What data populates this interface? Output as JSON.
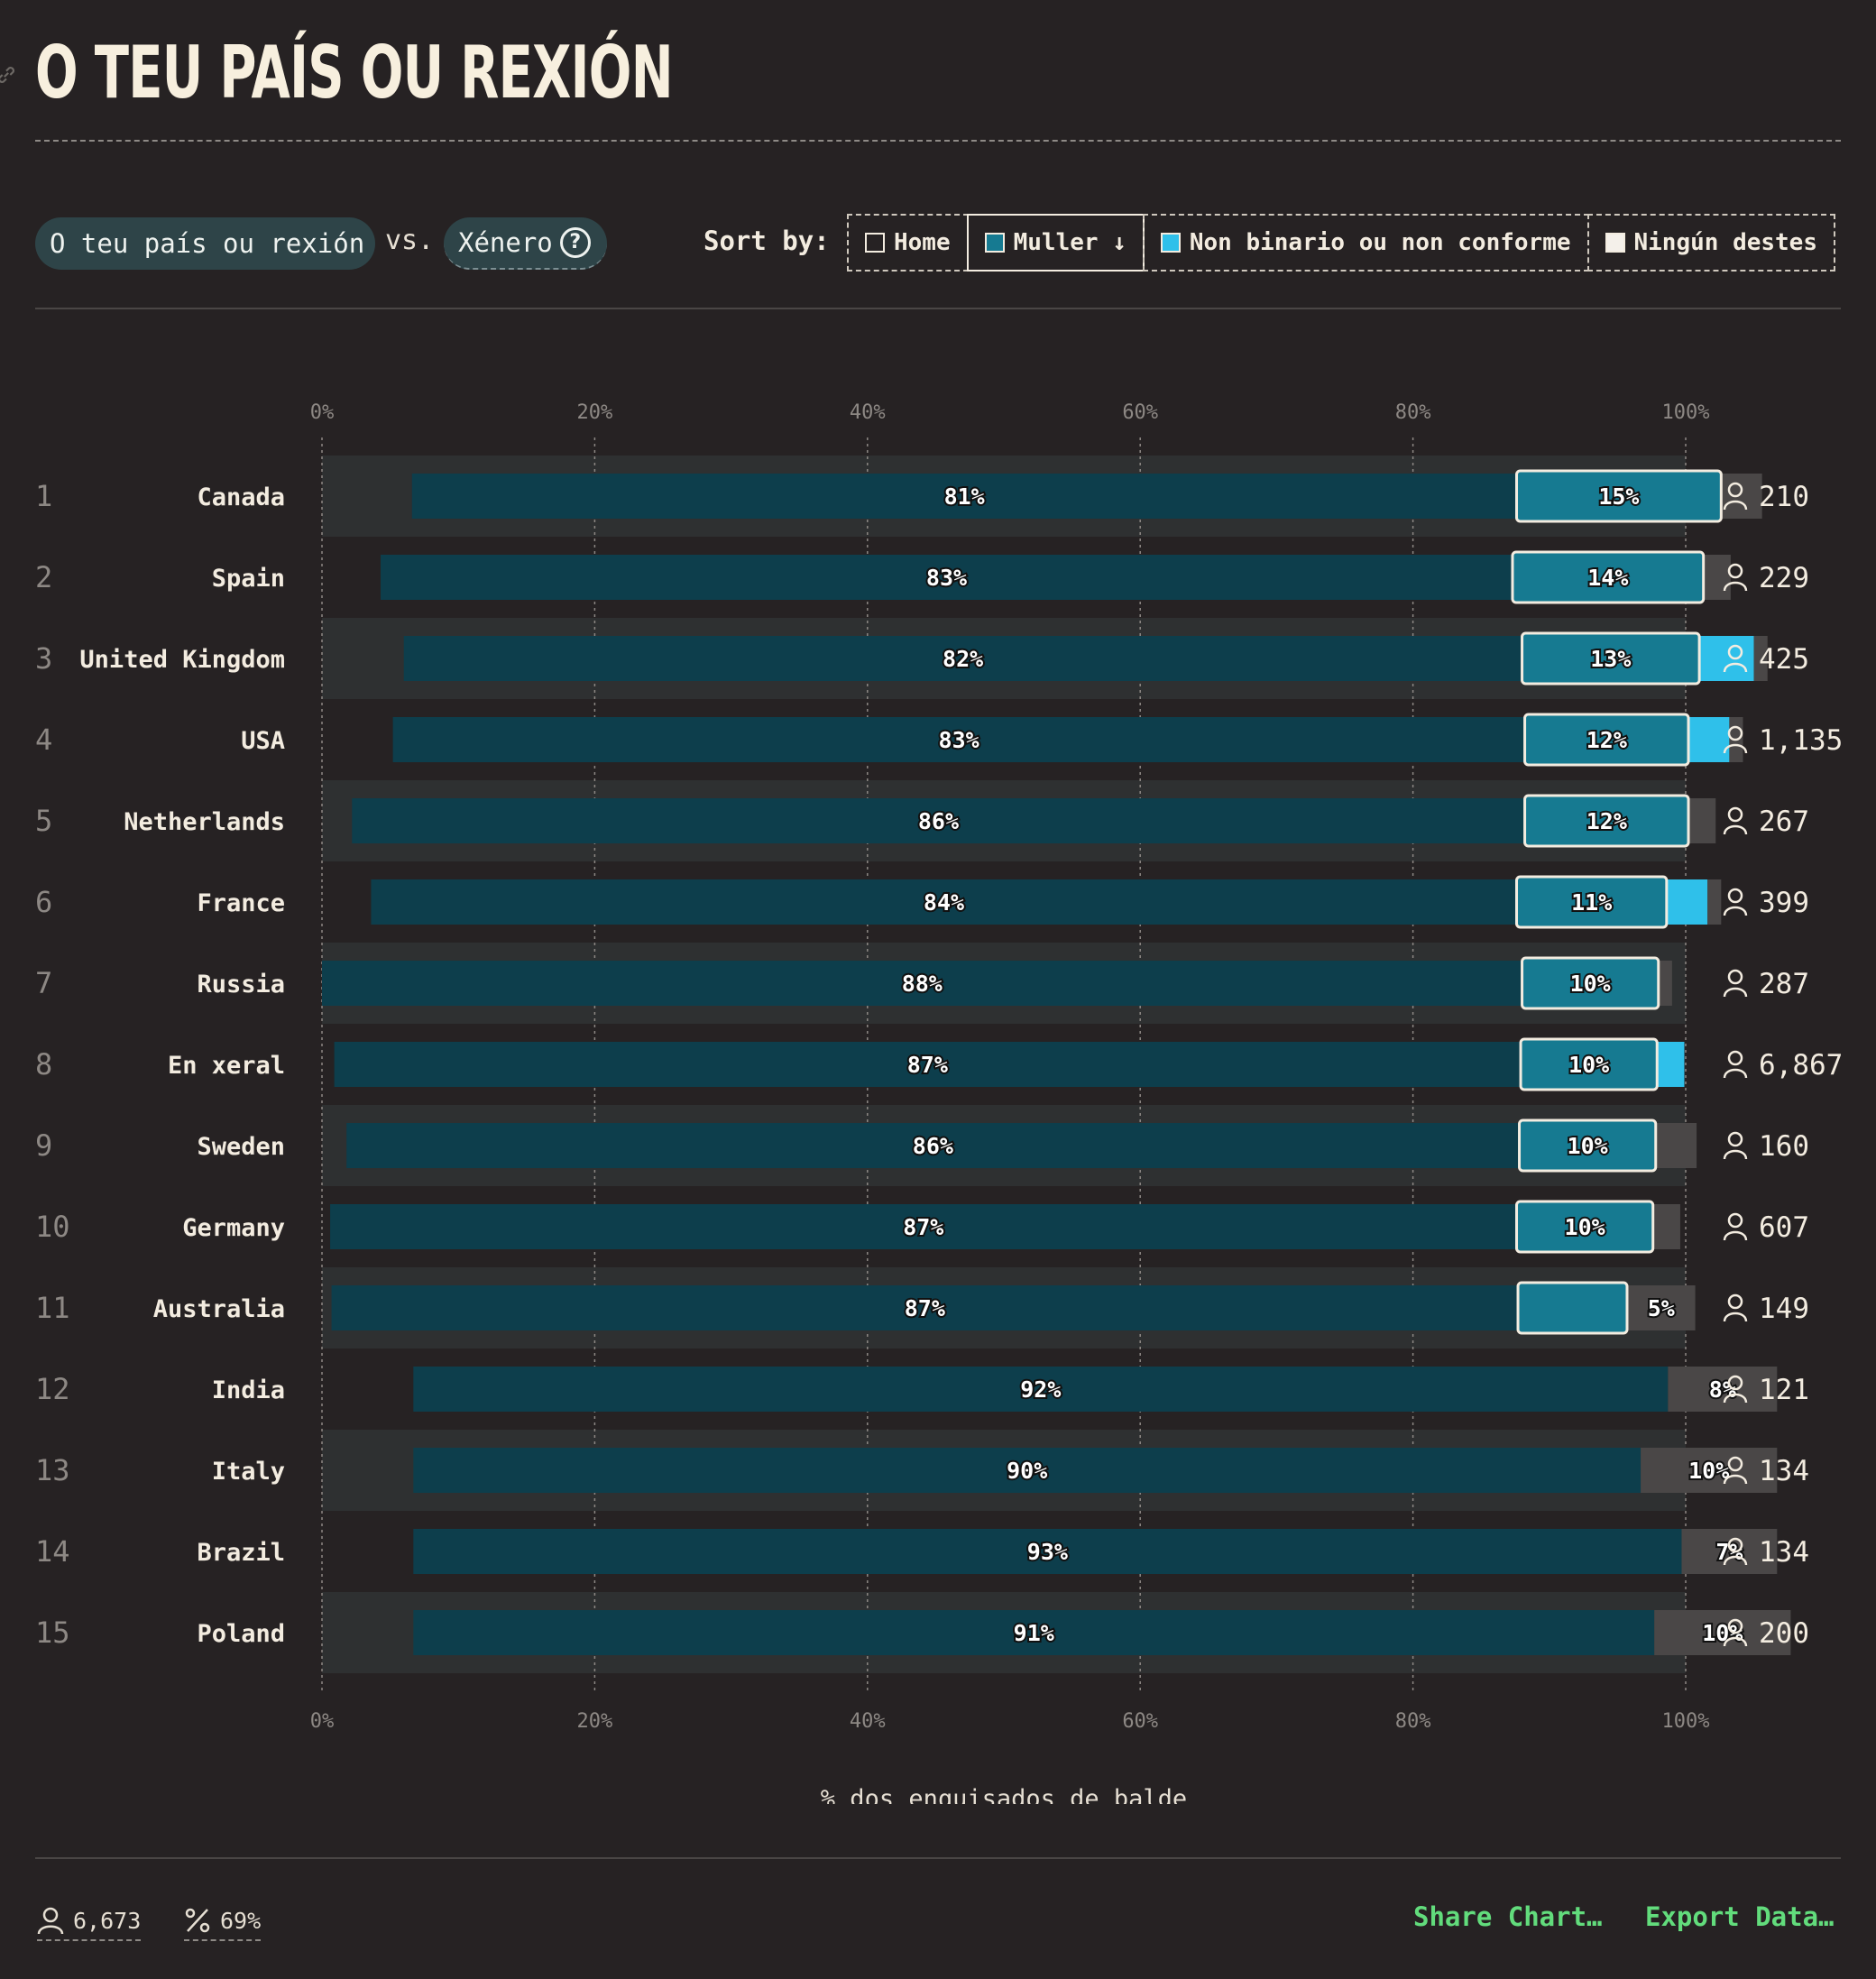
{
  "title": "O TEU PAÍS OU REXIÓN",
  "controls": {
    "group_by_label": "O teu país ou rexión",
    "vs_label": "vs.",
    "compare_label": "Xénero",
    "sort_by_label": "Sort by:",
    "sort_options": [
      {
        "label": "Home",
        "color": "#262223",
        "active": false
      },
      {
        "label": "Muller ↓",
        "color": "#167a91",
        "active": true
      },
      {
        "label": "Non binario ou non conforme",
        "color": "#2fc0ea",
        "active": false
      },
      {
        "label": "Ningún destes",
        "color": "#f4f0ea",
        "active": false
      }
    ]
  },
  "chart_data": {
    "type": "bar",
    "stacked": true,
    "orientation": "horizontal",
    "xlabel": "% dos enquisados de balde",
    "xlim": [
      0,
      100
    ],
    "x_ticks": [
      "0%",
      "20%",
      "40%",
      "60%",
      "80%",
      "100%"
    ],
    "series": [
      {
        "name": "Home",
        "color": "#0d3e4c"
      },
      {
        "name": "Muller",
        "color": "#167a91"
      },
      {
        "name": "Non binario ou non conforme",
        "color": "#2fc0ea"
      },
      {
        "name": "Ningún destes",
        "color": "#4a4747"
      }
    ],
    "rows": [
      {
        "rank": "1",
        "country": "Canada",
        "count": "210",
        "values": [
          81,
          15,
          0,
          3
        ],
        "offset": 6.6,
        "labels": [
          "81%",
          "15%",
          "",
          ""
        ]
      },
      {
        "rank": "2",
        "country": "Spain",
        "count": "229",
        "values": [
          83,
          14,
          0,
          2
        ],
        "offset": 4.3,
        "labels": [
          "83%",
          "14%",
          "",
          ""
        ]
      },
      {
        "rank": "3",
        "country": "United Kingdom",
        "count": "425",
        "values": [
          82,
          13,
          4,
          1
        ],
        "offset": 6.0,
        "labels": [
          "82%",
          "13%",
          "",
          ""
        ]
      },
      {
        "rank": "4",
        "country": "USA",
        "count": "1,135",
        "values": [
          83,
          12,
          3,
          1
        ],
        "offset": 5.2,
        "labels": [
          "83%",
          "12%",
          "",
          ""
        ]
      },
      {
        "rank": "5",
        "country": "Netherlands",
        "count": "267",
        "values": [
          86,
          12,
          0,
          2
        ],
        "offset": 2.2,
        "labels": [
          "86%",
          "12%",
          "",
          ""
        ]
      },
      {
        "rank": "6",
        "country": "France",
        "count": "399",
        "values": [
          84,
          11,
          3,
          1
        ],
        "offset": 3.6,
        "labels": [
          "84%",
          "11%",
          "",
          ""
        ]
      },
      {
        "rank": "7",
        "country": "Russia",
        "count": "287",
        "values": [
          88,
          10,
          0,
          1
        ],
        "offset": 0.0,
        "labels": [
          "88%",
          "10%",
          "",
          ""
        ]
      },
      {
        "rank": "8",
        "country": "En xeral",
        "count": "6,867",
        "values": [
          87,
          10,
          2,
          0
        ],
        "offset": 0.9,
        "labels": [
          "87%",
          "10%",
          "",
          ""
        ]
      },
      {
        "rank": "9",
        "country": "Sweden",
        "count": "160",
        "values": [
          86,
          10,
          0,
          3
        ],
        "offset": 1.8,
        "labels": [
          "86%",
          "10%",
          "",
          ""
        ]
      },
      {
        "rank": "10",
        "country": "Germany",
        "count": "607",
        "values": [
          87,
          10,
          0,
          2
        ],
        "offset": 0.6,
        "labels": [
          "87%",
          "10%",
          "",
          ""
        ]
      },
      {
        "rank": "11",
        "country": "Australia",
        "count": "149",
        "values": [
          87,
          8,
          0,
          5
        ],
        "offset": 0.7,
        "labels": [
          "87%",
          "8%",
          "",
          "5%"
        ]
      },
      {
        "rank": "12",
        "country": "India",
        "count": "121",
        "values": [
          92,
          0,
          0,
          8
        ],
        "offset": 6.7,
        "labels": [
          "92%",
          "",
          "",
          "8%"
        ]
      },
      {
        "rank": "13",
        "country": "Italy",
        "count": "134",
        "values": [
          90,
          0,
          0,
          10
        ],
        "offset": 6.7,
        "labels": [
          "90%",
          "",
          "",
          "10%"
        ]
      },
      {
        "rank": "14",
        "country": "Brazil",
        "count": "134",
        "values": [
          93,
          0,
          0,
          7
        ],
        "offset": 6.7,
        "labels": [
          "93%",
          "",
          "",
          "7%"
        ]
      },
      {
        "rank": "15",
        "country": "Poland",
        "count": "200",
        "values": [
          91,
          0,
          0,
          10
        ],
        "offset": 6.7,
        "labels": [
          "91%",
          "",
          "",
          "10%"
        ]
      }
    ]
  },
  "footer": {
    "respondents": "6,673",
    "percent": "69%",
    "share_label": "Share Chart…",
    "export_label": "Export Data…"
  }
}
